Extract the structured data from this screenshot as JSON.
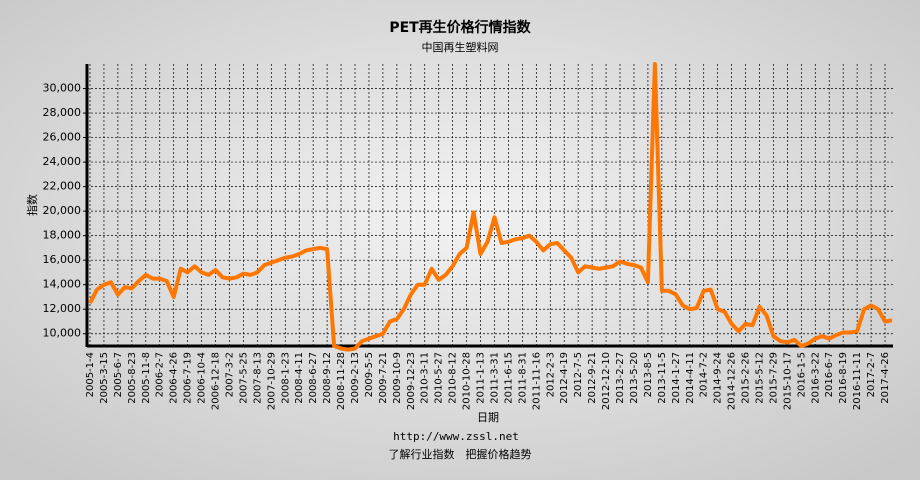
{
  "chart_data": {
    "type": "line",
    "title": "PET再生价格行情指数",
    "subtitle": "中国再生塑料网",
    "x_label": "日期",
    "y_label": "指数",
    "footer": [
      "http://www.zssl.net",
      "了解行业指数　把握价格趋势"
    ],
    "categories": [
      "2005-1-4",
      null,
      "2005-3-15",
      null,
      "2005-6-7",
      null,
      "2005-8-23",
      null,
      "2005-11-8",
      null,
      "2006-2-7",
      null,
      "2006-4-26",
      null,
      "2006-7-19",
      null,
      "2006-10-4",
      null,
      "2006-12-18",
      null,
      "2007-3-2",
      null,
      "2007-5-25",
      null,
      "2007-8-13",
      null,
      "2007-10-29",
      null,
      "2008-1-23",
      null,
      "2008-4-11",
      null,
      "2008-6-27",
      null,
      "2008-9-12",
      null,
      "2008-11-28",
      null,
      "2009-2-13",
      null,
      "2009-5-5",
      null,
      "2009-7-21",
      null,
      "2009-10-9",
      null,
      "2009-12-23",
      null,
      "2010-3-11",
      null,
      "2010-5-27",
      null,
      "2010-8-12",
      null,
      "2010-10-28",
      null,
      "2011-1-13",
      null,
      "2011-3-31",
      null,
      "2011-6-15",
      null,
      "2011-8-31",
      null,
      "2011-11-16",
      null,
      "2012-2-3",
      null,
      "2012-4-19",
      null,
      "2012-7-5",
      null,
      "2012-9-21",
      null,
      "2012-12-10",
      null,
      "2013-2-27",
      null,
      "2013-5-20",
      null,
      "2013-8-5",
      null,
      "2013-11-5",
      null,
      "2014-1-27",
      null,
      "2014-4-11",
      null,
      "2014-7-2",
      null,
      "2014-9-24",
      null,
      "2014-12-26",
      null,
      "2015-2-26",
      null,
      "2015-5-12",
      null,
      "2015-7-29",
      null,
      "2015-10-17",
      null,
      "2016-1-5",
      null,
      "2016-3-22",
      null,
      "2016-6-7",
      null,
      "2016-8-19",
      null,
      "2016-11-11",
      null,
      "2017-2-7",
      null,
      "2017-4-26",
      null
    ],
    "series": [
      {
        "name": "PET再生价格行情指数",
        "color": "#ff7700",
        "values": [
          12500,
          13600,
          14000,
          14200,
          13200,
          13800,
          13700,
          14300,
          14800,
          14500,
          14500,
          14300,
          13000,
          15300,
          15000,
          15500,
          15000,
          14800,
          15200,
          14600,
          14500,
          14600,
          14900,
          14800,
          15000,
          15600,
          15800,
          16000,
          16200,
          16300,
          16500,
          16800,
          16900,
          17000,
          16900,
          9000,
          8800,
          8700,
          8800,
          9400,
          9600,
          9800,
          10000,
          11000,
          11200,
          12000,
          13200,
          14000,
          14000,
          15300,
          14400,
          14800,
          15500,
          16500,
          17000,
          19900,
          16500,
          17500,
          19500,
          17400,
          17500,
          17700,
          17800,
          18000,
          17500,
          16800,
          17300,
          17400,
          16800,
          16200,
          15000,
          15500,
          15400,
          15300,
          15400,
          15500,
          15900,
          15700,
          15600,
          15400,
          14200,
          32000,
          13500,
          13500,
          13200,
          12300,
          12000,
          12100,
          13500,
          13600,
          12000,
          11800,
          10800,
          10200,
          10800,
          10700,
          12200,
          11500,
          9800,
          9400,
          9300,
          9500,
          9000,
          9200,
          9600,
          9800,
          9600,
          9900,
          10100,
          10100,
          10200,
          12000,
          12300,
          12000,
          11000,
          11100
        ]
      }
    ],
    "ylim": [
      9000,
      32000
    ],
    "yticks": [
      {
        "value": 10000,
        "label": "10,000"
      },
      {
        "value": 12000,
        "label": "12,000"
      },
      {
        "value": 14000,
        "label": "14,000"
      },
      {
        "value": 16000,
        "label": "16,000"
      },
      {
        "value": 18000,
        "label": "18,000"
      },
      {
        "value": 20000,
        "label": "20,000"
      },
      {
        "value": 22000,
        "label": "22,000"
      },
      {
        "value": 24000,
        "label": "24,000"
      },
      {
        "value": 26000,
        "label": "26,000"
      },
      {
        "value": 28000,
        "label": "28,000"
      },
      {
        "value": 30000,
        "label": "30,000"
      }
    ],
    "grid": true
  }
}
